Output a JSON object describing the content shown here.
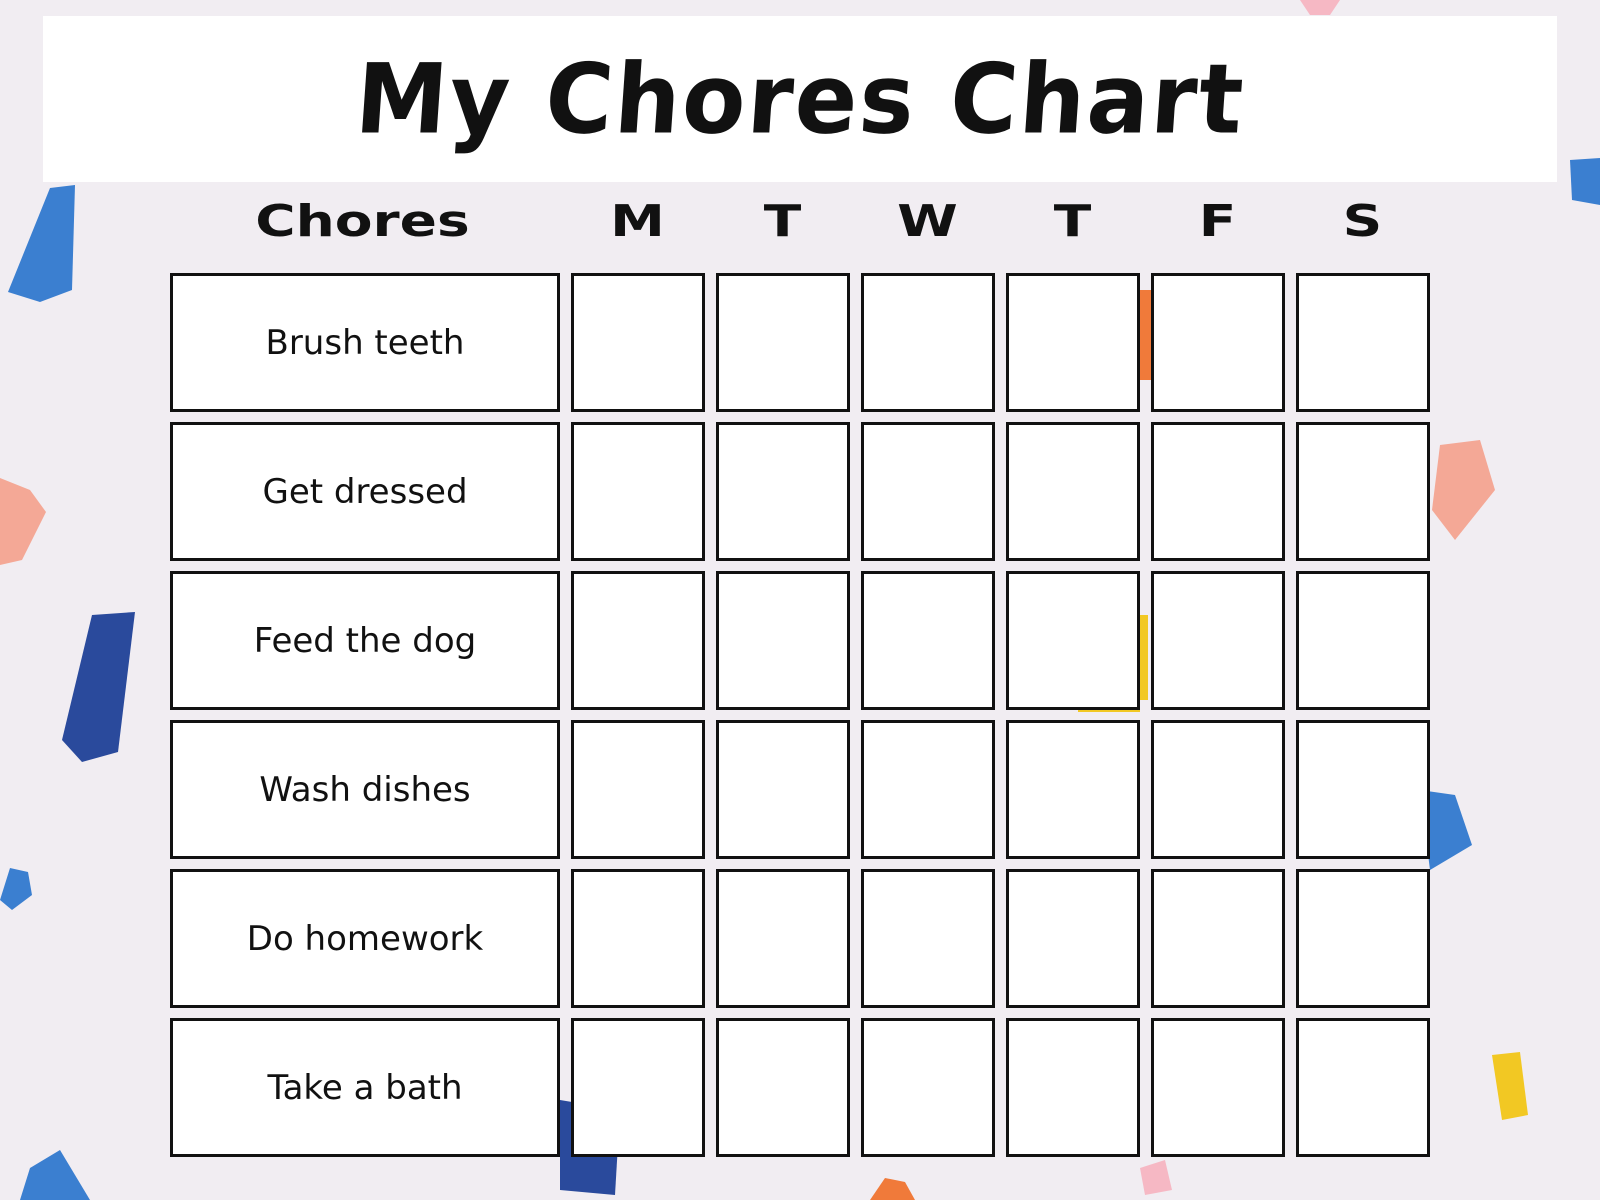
{
  "title": "My Chores Chart",
  "header": {
    "chores_label": "Chores",
    "days": [
      "M",
      "T",
      "W",
      "T",
      "F",
      "S"
    ]
  },
  "chores": [
    "Brush teeth",
    "Get dressed",
    "Feed the dog",
    "Wash dishes",
    "Do homework",
    "Take a bath"
  ],
  "colors": {
    "background": "#f1edf2",
    "confetti": [
      "#3b7fd0",
      "#2a4a9c",
      "#f4a896",
      "#f2c823",
      "#f07a3a",
      "#f6b8c4"
    ]
  }
}
